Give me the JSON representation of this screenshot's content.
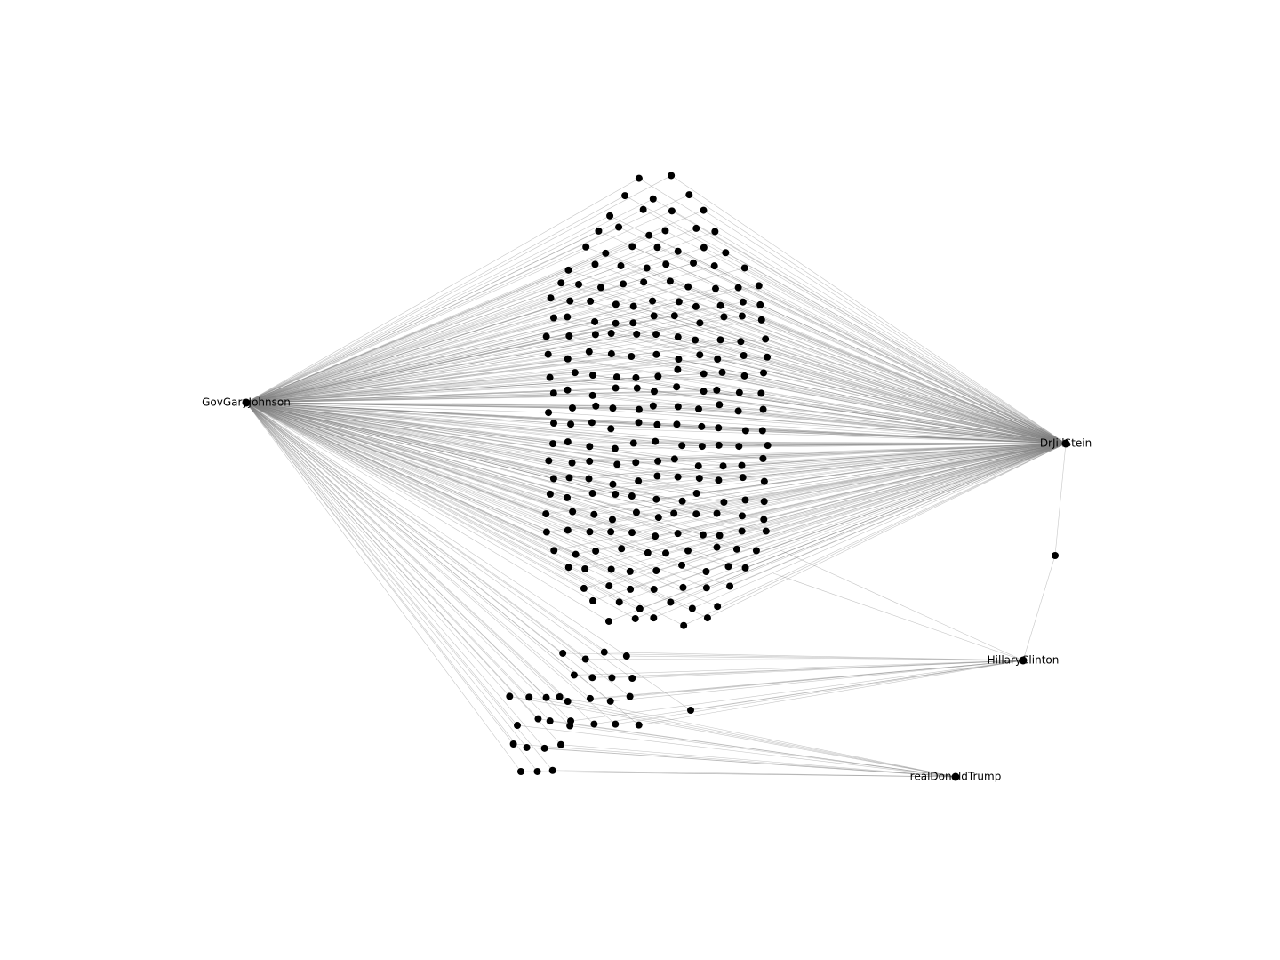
{
  "diagram": {
    "type": "network-graph",
    "hubs": [
      {
        "id": "johnson",
        "label": "GovGaryJohnson"
      },
      {
        "id": "stein",
        "label": "DrJillStein"
      },
      {
        "id": "clinton",
        "label": "HillaryClinton"
      },
      {
        "id": "trump",
        "label": "realDonaldTrump"
      }
    ],
    "groups": [
      {
        "id": "main-cluster",
        "connects_to": [
          "johnson",
          "stein"
        ],
        "node_count": 231
      },
      {
        "id": "mid-cluster",
        "connects_to": [
          "johnson",
          "clinton"
        ],
        "node_count": 17
      },
      {
        "id": "lower-cluster",
        "connects_to": [
          "johnson",
          "trump"
        ],
        "node_count": 15
      }
    ],
    "extra_edges": [
      {
        "from": "stein",
        "to": "clinton"
      }
    ],
    "colors": {
      "node": "#000000",
      "edge": "#808080",
      "background": "#ffffff"
    }
  }
}
